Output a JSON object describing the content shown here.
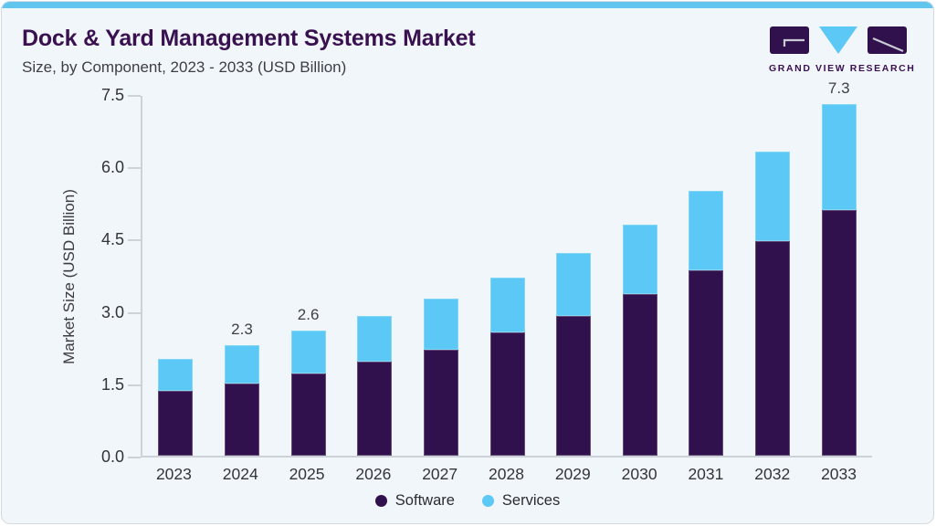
{
  "header": {
    "title": "Dock & Yard Management Systems Market",
    "subtitle": "Size, by Component, 2023 - 2033 (USD Billion)",
    "logo_text": "GRAND VIEW RESEARCH"
  },
  "chart_data": {
    "type": "bar",
    "stacked": true,
    "title": "Dock & Yard Management Systems Market Size, by Component, 2023 - 2033 (USD Billion)",
    "categories": [
      "2023",
      "2024",
      "2025",
      "2026",
      "2027",
      "2028",
      "2029",
      "2030",
      "2031",
      "2032",
      "2033"
    ],
    "series": [
      {
        "name": "Software",
        "color": "#31114d",
        "values": [
          1.35,
          1.5,
          1.7,
          1.95,
          2.2,
          2.55,
          2.9,
          3.35,
          3.85,
          4.45,
          5.1
        ]
      },
      {
        "name": "Services",
        "color": "#5bc8f5",
        "values": [
          0.65,
          0.8,
          0.9,
          0.95,
          1.05,
          1.15,
          1.3,
          1.45,
          1.65,
          1.85,
          2.2
        ]
      }
    ],
    "totals": [
      2.0,
      2.3,
      2.6,
      2.9,
      3.25,
      3.7,
      4.2,
      4.8,
      5.5,
      6.3,
      7.3
    ],
    "shown_total_labels": {
      "2024": "2.3",
      "2025": "2.6",
      "2033": "7.3"
    },
    "xlabel": "",
    "ylabel": "Market Size (USD Billion)",
    "ylim": [
      0,
      7.5
    ],
    "yticks": [
      "0.0",
      "1.5",
      "3.0",
      "4.5",
      "6.0",
      "7.5"
    ],
    "grid": false,
    "legend_position": "bottom"
  },
  "colors": {
    "software": "#31114d",
    "services": "#5bc8f5",
    "accent_strip": "#61c6ee",
    "title_text": "#3a1150",
    "axis_line": "#cdd2d9",
    "card_background": "#f1f6fa"
  }
}
